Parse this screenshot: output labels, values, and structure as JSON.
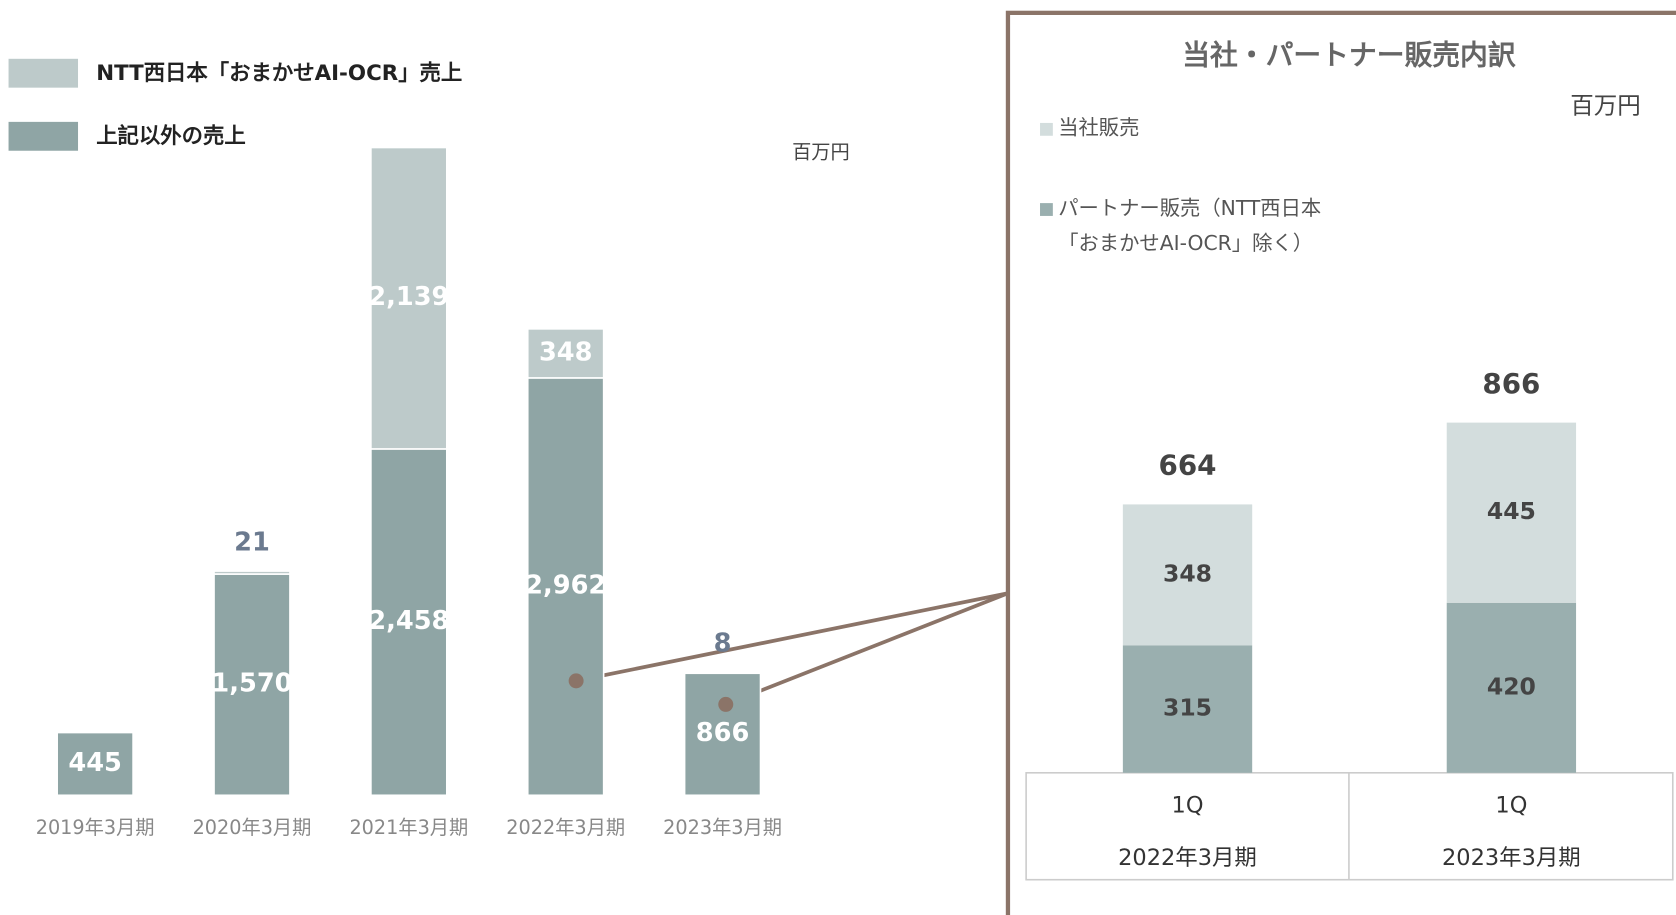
{
  "chart_data": [
    {
      "type": "bar",
      "stacked": true,
      "unit": "百万円",
      "categories": [
        "2019年3月期",
        "2020年3月期",
        "2021年3月期",
        "2022年3月期",
        "2023年3月期"
      ],
      "series": [
        {
          "name": "上記以外の売上",
          "color": "#8fa5a5",
          "values": [
            445,
            1570,
            2458,
            2962,
            866
          ]
        },
        {
          "name": "NTT西日本「おまかせAI-OCR」売上",
          "color": "#bdcaca",
          "values": [
            null,
            21,
            2139,
            348,
            8
          ]
        }
      ]
    },
    {
      "type": "bar",
      "stacked": true,
      "title": "当社・パートナー販売内訳",
      "unit": "百万円",
      "categories": [
        [
          "1Q",
          "2022年3月期"
        ],
        [
          "1Q",
          "2023年3月期"
        ]
      ],
      "series": [
        {
          "name": "パートナー販売（NTT西日本「おまかせAI-OCR」除く）",
          "color": "#9aafaf",
          "values": [
            315,
            420
          ]
        },
        {
          "name": "当社販売",
          "color": "#d3dddd",
          "values": [
            348,
            445
          ]
        }
      ],
      "totals": [
        664,
        866
      ]
    }
  ]
}
